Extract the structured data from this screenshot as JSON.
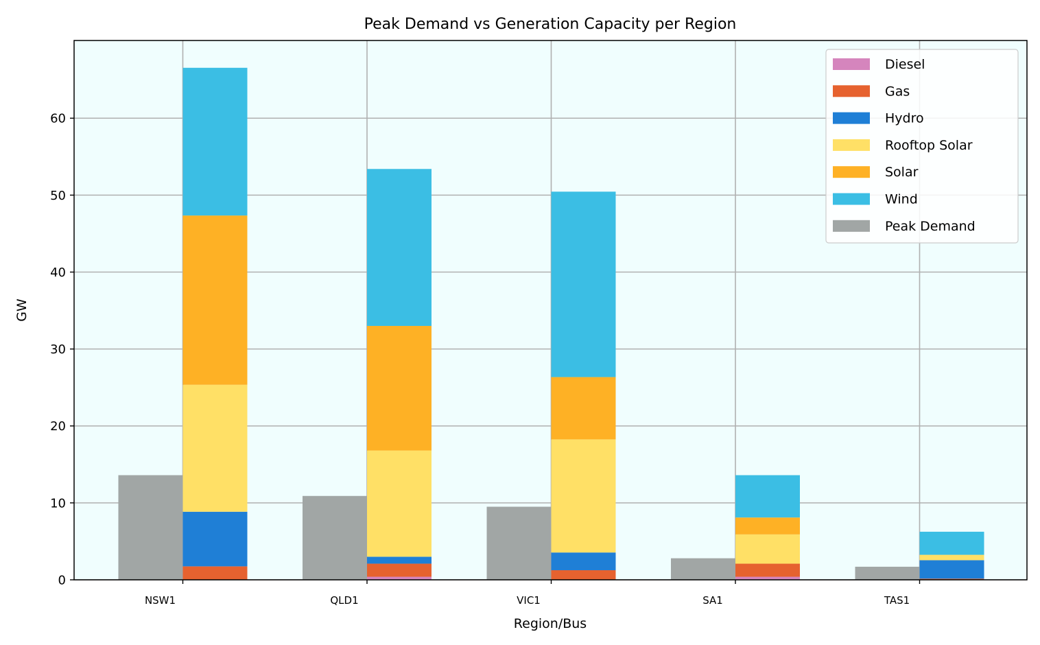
{
  "chart_data": {
    "type": "bar",
    "title": "Peak Demand vs Generation Capacity per Region",
    "xlabel": "Region/Bus",
    "ylabel": "GW",
    "ylim": [
      0,
      70
    ],
    "yticks": [
      0,
      10,
      20,
      30,
      40,
      50,
      60
    ],
    "categories": [
      "NSW1",
      "QLD1",
      "VIC1",
      "SA1",
      "TAS1"
    ],
    "grid": true,
    "legend_position": "top-right",
    "plot_background": "#f0fefe",
    "capacity_series": [
      {
        "name": "Diesel",
        "color": "#d585bd",
        "values": [
          0.05,
          0.4,
          0.05,
          0.4,
          0.05
        ]
      },
      {
        "name": "Gas",
        "color": "#e6622f",
        "values": [
          1.7,
          1.7,
          1.2,
          1.7,
          0.1
        ]
      },
      {
        "name": "Hydro",
        "color": "#1f7fd6",
        "values": [
          7.1,
          0.9,
          2.3,
          0.0,
          2.4
        ]
      },
      {
        "name": "Rooftop Solar",
        "color": "#ffe066",
        "values": [
          16.5,
          13.8,
          14.7,
          3.8,
          0.7
        ]
      },
      {
        "name": "Solar",
        "color": "#feb125",
        "values": [
          22.0,
          16.2,
          8.1,
          2.2,
          0.0
        ]
      },
      {
        "name": "Wind",
        "color": "#3bbee4",
        "values": [
          19.2,
          20.4,
          24.1,
          5.5,
          3.0
        ]
      }
    ],
    "demand_series": {
      "name": "Peak Demand",
      "color": "#a1a6a5",
      "values": [
        13.6,
        10.9,
        9.5,
        2.8,
        1.7
      ]
    }
  }
}
